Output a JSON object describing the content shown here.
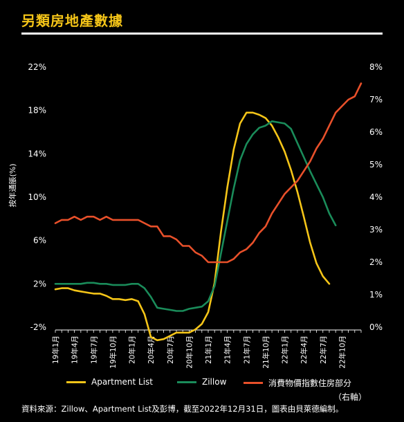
{
  "title": "另類房地產數據",
  "source": "資料來源：Zillow、Apartment List及彭博，截至2022年12月31日，圖表由貝萊德編制。",
  "chart_data": {
    "type": "line",
    "ylabel": "按年通脹(%)",
    "left_axis": {
      "ticks": [
        "22%",
        "18%",
        "14%",
        "10%",
        "6%",
        "2%",
        "-2%"
      ],
      "min": -2,
      "max": 22
    },
    "right_axis": {
      "ticks": [
        "8%",
        "7%",
        "6%",
        "5%",
        "4%",
        "3%",
        "2%",
        "1%",
        "0%"
      ],
      "min": 0,
      "max": 8
    },
    "x_tick_labels": [
      "19年1月",
      "19年4月",
      "19年7月",
      "19年10月",
      "20年1月",
      "20年4月",
      "20年7月",
      "20年10月",
      "21年1月",
      "21年4月",
      "21年7月",
      "21年10月",
      "22年1月",
      "22年4月",
      "22年7月",
      "22年10月"
    ],
    "x_months": 48,
    "series": [
      {
        "name": "Apartment List",
        "axis": "left",
        "color": "#f5c518",
        "values": [
          1.5,
          1.6,
          1.6,
          1.4,
          1.3,
          1.2,
          1.1,
          1.1,
          0.9,
          0.6,
          0.6,
          0.5,
          0.6,
          0.4,
          -0.8,
          -2.9,
          -3.2,
          -3.1,
          -2.8,
          -2.5,
          -2.5,
          -2.5,
          -2.2,
          -1.7,
          -0.6,
          2.1,
          6.8,
          10.9,
          14.4,
          16.8,
          17.8,
          17.8,
          17.6,
          17.3,
          16.6,
          15.5,
          14.2,
          12.5,
          10.5,
          8.2,
          5.8,
          3.9,
          2.7,
          2.0
        ]
      },
      {
        "name": "Zillow",
        "axis": "left",
        "color": "#1a8c5a",
        "values": [
          2.0,
          2.0,
          2.0,
          2.0,
          2.0,
          2.1,
          2.1,
          2.0,
          2.0,
          1.9,
          1.9,
          1.9,
          2.0,
          2.0,
          1.6,
          0.8,
          -0.2,
          -0.3,
          -0.4,
          -0.5,
          -0.5,
          -0.3,
          -0.2,
          -0.1,
          0.4,
          1.8,
          4.8,
          7.8,
          10.8,
          13.4,
          14.9,
          15.8,
          16.4,
          16.6,
          17.0,
          16.9,
          16.8,
          16.3,
          15.0,
          13.7,
          12.4,
          11.2,
          10.0,
          8.5,
          7.4
        ]
      },
      {
        "name": "消費物價指數住房部分",
        "name_line2": "（右軸）",
        "axis": "right",
        "color": "#e8502a",
        "values": [
          3.2,
          3.3,
          3.3,
          3.4,
          3.3,
          3.4,
          3.4,
          3.3,
          3.4,
          3.3,
          3.3,
          3.3,
          3.3,
          3.3,
          3.2,
          3.1,
          3.1,
          2.8,
          2.8,
          2.7,
          2.5,
          2.5,
          2.3,
          2.2,
          2.0,
          2.0,
          2.0,
          2.0,
          2.1,
          2.3,
          2.4,
          2.6,
          2.9,
          3.1,
          3.5,
          3.8,
          4.1,
          4.3,
          4.5,
          4.8,
          5.1,
          5.5,
          5.8,
          6.2,
          6.6,
          6.8,
          7.0,
          7.1,
          7.5
        ]
      }
    ]
  }
}
